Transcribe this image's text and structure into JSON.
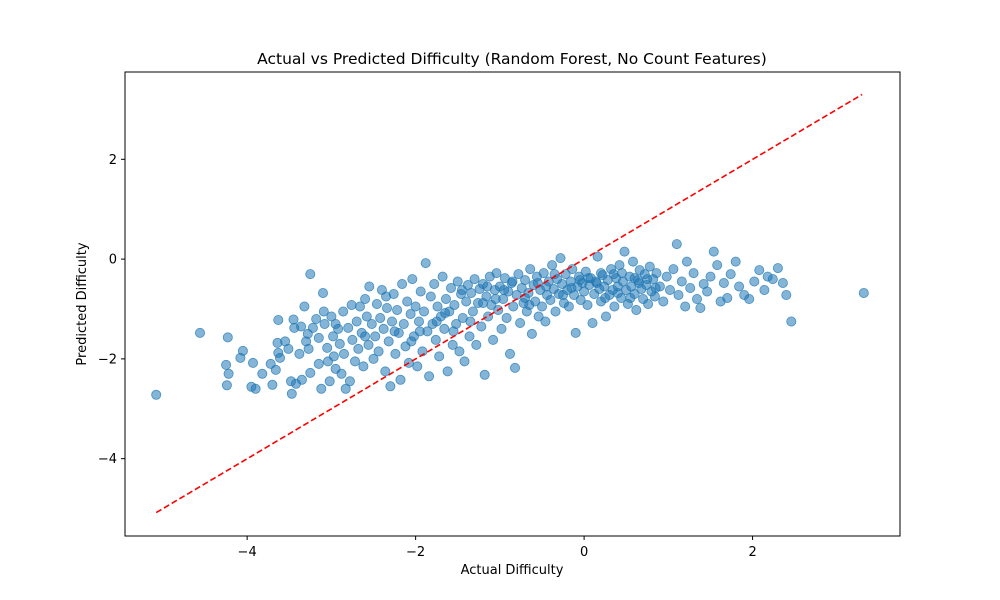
{
  "chart_data": {
    "type": "scatter",
    "title": "Actual vs Predicted Difficulty (Random Forest, No Count Features)",
    "xlabel": "Actual Difficulty",
    "ylabel": "Predicted Difficulty",
    "xlim": [
      -5.45,
      3.75
    ],
    "ylim": [
      -5.55,
      3.75
    ],
    "xticks": [
      -4,
      -2,
      0,
      2
    ],
    "yticks": [
      -4,
      -2,
      0,
      2
    ],
    "x_tick_labels": [
      "−4",
      "−2",
      "0",
      "2"
    ],
    "y_tick_labels": [
      "−4",
      "−2",
      "0",
      "2"
    ],
    "grid": false,
    "legend": "none",
    "point_color": "#1f77b4",
    "point_alpha": 0.55,
    "reference_line": {
      "x": [
        -5.08,
        3.3
      ],
      "y": [
        -5.08,
        3.3
      ],
      "color": "#ff0000",
      "style": "dashed"
    },
    "points": [
      [
        -5.08,
        -2.72
      ],
      [
        -4.56,
        -1.48
      ],
      [
        -4.23,
        -1.57
      ],
      [
        -4.25,
        -2.12
      ],
      [
        -4.22,
        -2.3
      ],
      [
        -4.24,
        -2.53
      ],
      [
        -4.05,
        -1.84
      ],
      [
        -4.08,
        -1.98
      ],
      [
        -3.93,
        -2.08
      ],
      [
        -3.95,
        -2.56
      ],
      [
        -3.9,
        -2.6
      ],
      [
        -3.82,
        -2.3
      ],
      [
        -3.72,
        -2.1
      ],
      [
        -3.7,
        -2.52
      ],
      [
        -3.66,
        -2.22
      ],
      [
        -3.63,
        -1.22
      ],
      [
        -3.64,
        -1.68
      ],
      [
        -3.63,
        -1.88
      ],
      [
        -3.61,
        -1.98
      ],
      [
        -3.55,
        -1.65
      ],
      [
        -3.51,
        -1.8
      ],
      [
        -3.48,
        -2.45
      ],
      [
        -3.47,
        -2.7
      ],
      [
        -3.45,
        -1.21
      ],
      [
        -3.44,
        -1.38
      ],
      [
        -3.42,
        -2.5
      ],
      [
        -3.38,
        -1.9
      ],
      [
        -3.36,
        -1.35
      ],
      [
        -3.35,
        -2.42
      ],
      [
        -3.32,
        -0.95
      ],
      [
        -3.3,
        -1.65
      ],
      [
        -3.28,
        -1.5
      ],
      [
        -3.27,
        -1.8
      ],
      [
        -3.25,
        -2.28
      ],
      [
        -3.25,
        -0.3
      ],
      [
        -3.22,
        -1.38
      ],
      [
        -3.18,
        -1.2
      ],
      [
        -3.15,
        -1.58
      ],
      [
        -3.15,
        -2.1
      ],
      [
        -3.12,
        -2.6
      ],
      [
        -3.1,
        -0.68
      ],
      [
        -3.09,
        -1.05
      ],
      [
        -3.08,
        -1.3
      ],
      [
        -3.05,
        -1.78
      ],
      [
        -3.04,
        -2.05
      ],
      [
        -3.02,
        -2.45
      ],
      [
        -3.0,
        -1.15
      ],
      [
        -2.98,
        -1.55
      ],
      [
        -2.97,
        -1.95
      ],
      [
        -2.95,
        -2.2
      ],
      [
        -2.92,
        -1.4
      ],
      [
        -2.9,
        -1.7
      ],
      [
        -2.88,
        -2.3
      ],
      [
        -2.86,
        -1.05
      ],
      [
        -2.85,
        -1.9
      ],
      [
        -2.83,
        -2.6
      ],
      [
        -2.8,
        -1.38
      ],
      [
        -2.78,
        -2.45
      ],
      [
        -2.76,
        -0.92
      ],
      [
        -2.75,
        -1.62
      ],
      [
        -2.72,
        -2.05
      ],
      [
        -2.7,
        -1.25
      ],
      [
        -2.68,
        -1.8
      ],
      [
        -2.66,
        -0.95
      ],
      [
        -2.64,
        -1.48
      ],
      [
        -2.62,
        -2.15
      ],
      [
        -2.6,
        -0.8
      ],
      [
        -2.58,
        -1.15
      ],
      [
        -2.56,
        -1.72
      ],
      [
        -2.55,
        -0.55
      ],
      [
        -2.52,
        -1.3
      ],
      [
        -2.5,
        -2.0
      ],
      [
        -2.48,
        -1.55
      ],
      [
        -2.46,
        -0.9
      ],
      [
        -2.44,
        -1.85
      ],
      [
        -2.42,
        -1.18
      ],
      [
        -2.4,
        -0.62
      ],
      [
        -2.38,
        -1.4
      ],
      [
        -2.36,
        -2.25
      ],
      [
        -2.34,
        -0.98
      ],
      [
        -2.32,
        -1.65
      ],
      [
        -2.3,
        -2.55
      ],
      [
        -2.28,
        -1.25
      ],
      [
        -2.26,
        -0.7
      ],
      [
        -2.24,
        -1.9
      ],
      [
        -2.22,
        -1.02
      ],
      [
        -2.2,
        -1.48
      ],
      [
        -2.18,
        -2.42
      ],
      [
        -2.16,
        -0.5
      ],
      [
        -2.14,
        -1.3
      ],
      [
        -2.12,
        -1.75
      ],
      [
        -2.1,
        -0.85
      ],
      [
        -2.08,
        -2.08
      ],
      [
        -2.06,
        -1.1
      ],
      [
        -2.04,
        -0.4
      ],
      [
        -2.02,
        -1.55
      ],
      [
        -2.0,
        -0.95
      ],
      [
        -1.98,
        -2.15
      ],
      [
        -1.96,
        -1.25
      ],
      [
        -1.94,
        -0.65
      ],
      [
        -1.92,
        -1.85
      ],
      [
        -1.9,
        -1.05
      ],
      [
        -1.88,
        -0.08
      ],
      [
        -1.86,
        -1.45
      ],
      [
        -1.84,
        -2.35
      ],
      [
        -1.82,
        -0.75
      ],
      [
        -1.8,
        -1.3
      ],
      [
        -1.78,
        -0.5
      ],
      [
        -1.76,
        -1.62
      ],
      [
        -1.74,
        -0.95
      ],
      [
        -1.72,
        -1.95
      ],
      [
        -1.7,
        -1.15
      ],
      [
        -1.68,
        -0.35
      ],
      [
        -1.66,
        -1.4
      ],
      [
        -1.64,
        -0.8
      ],
      [
        -1.62,
        -2.25
      ],
      [
        -1.6,
        -1.05
      ],
      [
        -1.58,
        -0.58
      ],
      [
        -1.56,
        -1.72
      ],
      [
        -1.54,
        -0.92
      ],
      [
        -1.52,
        -1.3
      ],
      [
        -1.5,
        -0.45
      ],
      [
        -1.48,
        -1.85
      ],
      [
        -1.46,
        -0.7
      ],
      [
        -1.44,
        -1.18
      ],
      [
        -1.42,
        -2.05
      ],
      [
        -1.4,
        -0.85
      ],
      [
        -1.38,
        -0.52
      ],
      [
        -1.36,
        -1.55
      ],
      [
        -1.34,
        -0.68
      ],
      [
        -1.32,
        -1.05
      ],
      [
        -1.3,
        -0.4
      ],
      [
        -1.28,
        -1.72
      ],
      [
        -1.26,
        -0.88
      ],
      [
        -1.24,
        -0.6
      ],
      [
        -1.22,
        -1.35
      ],
      [
        -1.2,
        -0.5
      ],
      [
        -1.18,
        -2.32
      ],
      [
        -1.16,
        -0.75
      ],
      [
        -1.14,
        -1.15
      ],
      [
        -1.12,
        -0.35
      ],
      [
        -1.1,
        -0.92
      ],
      [
        -1.08,
        -1.62
      ],
      [
        -1.06,
        -0.62
      ],
      [
        -1.04,
        -0.28
      ],
      [
        -1.02,
        -1.02
      ],
      [
        -1.0,
        -0.55
      ],
      [
        -0.98,
        -1.4
      ],
      [
        -0.96,
        -0.8
      ],
      [
        -0.94,
        -0.38
      ],
      [
        -0.92,
        -1.18
      ],
      [
        -0.9,
        -0.65
      ],
      [
        -0.88,
        -1.9
      ],
      [
        -0.86,
        -0.48
      ],
      [
        -0.84,
        -0.95
      ],
      [
        -0.82,
        -2.18
      ],
      [
        -0.8,
        -0.72
      ],
      [
        -0.78,
        -0.3
      ],
      [
        -0.76,
        -1.28
      ],
      [
        -0.74,
        -0.58
      ],
      [
        -0.72,
        -0.88
      ],
      [
        -0.7,
        -0.42
      ],
      [
        -0.68,
        -1.05
      ],
      [
        -0.66,
        -0.68
      ],
      [
        -0.64,
        -0.2
      ],
      [
        -0.62,
        -1.5
      ],
      [
        -0.6,
        -0.52
      ],
      [
        -0.58,
        -0.85
      ],
      [
        -0.56,
        -0.35
      ],
      [
        -0.54,
        -1.15
      ],
      [
        -0.52,
        -0.62
      ],
      [
        -0.5,
        -0.95
      ],
      [
        -0.48,
        -0.28
      ],
      [
        -0.46,
        -1.25
      ],
      [
        -0.44,
        -0.72
      ],
      [
        -0.42,
        -0.45
      ],
      [
        -0.4,
        -0.82
      ],
      [
        -0.38,
        -0.12
      ],
      [
        -0.36,
        -0.6
      ],
      [
        -0.34,
        -1.05
      ],
      [
        -0.32,
        -0.4
      ],
      [
        -0.3,
        -0.7
      ],
      [
        -0.28,
        0.02
      ],
      [
        -0.26,
        -0.5
      ],
      [
        -0.24,
        -0.88
      ],
      [
        -0.22,
        -0.3
      ],
      [
        -0.2,
        -0.62
      ],
      [
        -0.18,
        -0.95
      ],
      [
        -0.16,
        -0.45
      ],
      [
        -0.14,
        -0.2
      ],
      [
        -0.12,
        -0.72
      ],
      [
        -0.1,
        -1.48
      ],
      [
        -0.08,
        -0.55
      ],
      [
        -0.06,
        -0.35
      ],
      [
        -0.04,
        -0.82
      ],
      [
        -0.02,
        -0.48
      ],
      [
        0.0,
        -0.65
      ],
      [
        0.02,
        -0.25
      ],
      [
        0.04,
        -0.92
      ],
      [
        0.06,
        -0.52
      ],
      [
        0.08,
        -0.38
      ],
      [
        0.1,
        -1.28
      ],
      [
        0.12,
        -0.7
      ],
      [
        0.14,
        -0.45
      ],
      [
        0.16,
        0.05
      ],
      [
        0.18,
        -0.6
      ],
      [
        0.2,
        -0.85
      ],
      [
        0.22,
        -0.32
      ],
      [
        0.24,
        -0.55
      ],
      [
        0.26,
        -1.15
      ],
      [
        0.28,
        -0.42
      ],
      [
        0.3,
        -0.72
      ],
      [
        0.32,
        -0.2
      ],
      [
        0.34,
        -0.62
      ],
      [
        0.36,
        -0.95
      ],
      [
        0.38,
        -0.38
      ],
      [
        0.4,
        -0.55
      ],
      [
        0.42,
        -0.12
      ],
      [
        0.44,
        -0.78
      ],
      [
        0.46,
        -0.45
      ],
      [
        0.48,
        0.15
      ],
      [
        0.5,
        -0.62
      ],
      [
        0.52,
        -0.9
      ],
      [
        0.54,
        -0.35
      ],
      [
        0.56,
        -0.55
      ],
      [
        0.58,
        -0.05
      ],
      [
        0.6,
        -0.7
      ],
      [
        0.62,
        -1.02
      ],
      [
        0.64,
        -0.42
      ],
      [
        0.66,
        -0.22
      ],
      [
        0.68,
        -0.6
      ],
      [
        0.7,
        -0.8
      ],
      [
        0.72,
        -0.3
      ],
      [
        0.74,
        -0.52
      ],
      [
        0.76,
        -0.9
      ],
      [
        0.78,
        -0.15
      ],
      [
        0.8,
        -0.65
      ],
      [
        0.82,
        -0.4
      ],
      [
        0.84,
        -0.75
      ],
      [
        0.86,
        -0.28
      ],
      [
        0.9,
        -0.55
      ],
      [
        0.94,
        -0.85
      ],
      [
        0.98,
        -0.35
      ],
      [
        1.02,
        -0.62
      ],
      [
        1.06,
        -0.2
      ],
      [
        1.1,
        0.3
      ],
      [
        1.12,
        -0.72
      ],
      [
        1.16,
        -0.45
      ],
      [
        1.2,
        -0.95
      ],
      [
        1.22,
        -0.05
      ],
      [
        1.26,
        -0.58
      ],
      [
        1.3,
        -0.28
      ],
      [
        1.34,
        -0.8
      ],
      [
        1.38,
        -0.98
      ],
      [
        1.42,
        -0.5
      ],
      [
        1.46,
        -0.65
      ],
      [
        1.5,
        -0.35
      ],
      [
        1.54,
        0.15
      ],
      [
        1.58,
        -0.12
      ],
      [
        1.62,
        -0.85
      ],
      [
        1.66,
        -0.48
      ],
      [
        1.7,
        -0.78
      ],
      [
        1.74,
        -0.3
      ],
      [
        1.8,
        -0.05
      ],
      [
        1.84,
        -0.55
      ],
      [
        1.9,
        -0.72
      ],
      [
        1.96,
        -0.8
      ],
      [
        2.02,
        -0.45
      ],
      [
        2.08,
        -0.22
      ],
      [
        2.14,
        -0.62
      ],
      [
        2.18,
        -0.35
      ],
      [
        2.24,
        -0.4
      ],
      [
        2.3,
        -0.18
      ],
      [
        2.36,
        -0.48
      ],
      [
        2.4,
        -0.72
      ],
      [
        2.46,
        -1.25
      ],
      [
        3.32,
        -0.68
      ],
      [
        -2.95,
        -1.3
      ],
      [
        -2.6,
        -1.55
      ],
      [
        -2.25,
        -1.45
      ],
      [
        -1.95,
        -1.45
      ],
      [
        -1.55,
        -1.45
      ],
      [
        -1.2,
        -0.88
      ],
      [
        -0.95,
        -0.62
      ],
      [
        -0.7,
        -0.78
      ],
      [
        -0.45,
        -0.55
      ],
      [
        -0.25,
        -0.72
      ],
      [
        0.05,
        -0.38
      ],
      [
        0.25,
        -0.78
      ],
      [
        0.45,
        -0.28
      ],
      [
        0.65,
        -0.48
      ],
      [
        0.85,
        -0.58
      ],
      [
        -1.65,
        -1.08
      ],
      [
        -1.35,
        -1.25
      ],
      [
        -1.05,
        -0.8
      ],
      [
        -0.85,
        -0.45
      ],
      [
        -0.55,
        -0.48
      ],
      [
        -0.15,
        -0.58
      ],
      [
        0.15,
        -0.48
      ],
      [
        0.35,
        -0.3
      ],
      [
        0.55,
        -0.78
      ],
      [
        0.75,
        -0.4
      ],
      [
        -2.35,
        -0.75
      ],
      [
        -2.05,
        -1.65
      ],
      [
        -1.75,
        -1.25
      ],
      [
        -1.45,
        -0.62
      ],
      [
        -1.15,
        -0.55
      ],
      [
        -0.65,
        -0.92
      ],
      [
        -0.35,
        -0.3
      ],
      [
        -0.05,
        -0.42
      ],
      [
        0.2,
        -0.28
      ],
      [
        0.4,
        -0.68
      ],
      [
        0.6,
        -0.38
      ]
    ]
  }
}
